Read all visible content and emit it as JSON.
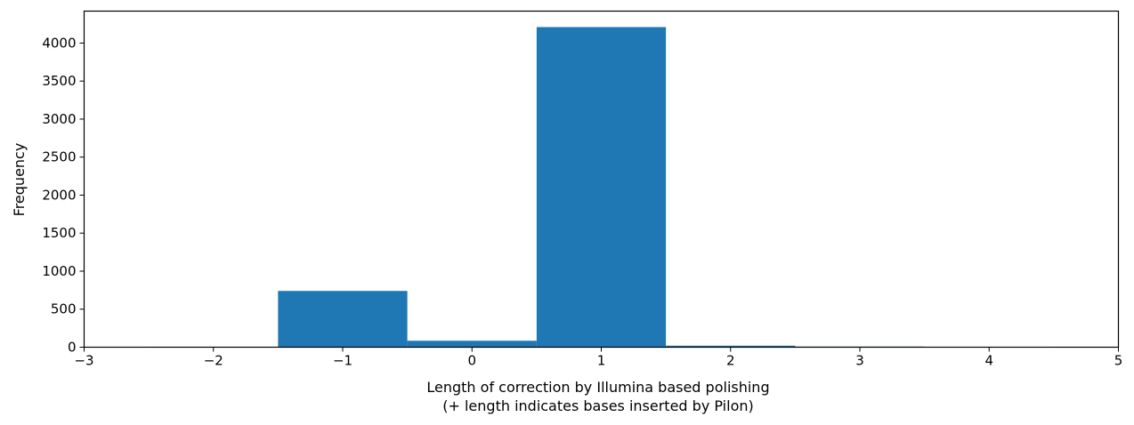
{
  "chart_data": {
    "type": "bar",
    "title": "",
    "xlabel_lines": [
      "Length of correction by Illumina based polishing",
      "(+ length indicates bases inserted by Pilon)"
    ],
    "ylabel": "Frequency",
    "xlim": [
      -3,
      5
    ],
    "ylim": [
      0,
      4420
    ],
    "grid": false,
    "bar_color": "#1f77b4",
    "bins": [
      {
        "x0": -3.0,
        "x1": -2.5,
        "value": 3
      },
      {
        "x0": -2.5,
        "x1": -1.5,
        "value": 6
      },
      {
        "x0": -1.5,
        "x1": -0.5,
        "value": 740
      },
      {
        "x0": -0.5,
        "x1": 0.5,
        "value": 85
      },
      {
        "x0": 0.5,
        "x1": 1.5,
        "value": 4210
      },
      {
        "x0": 1.5,
        "x1": 2.5,
        "value": 20
      },
      {
        "x0": 2.5,
        "x1": 3.5,
        "value": 8
      },
      {
        "x0": 3.5,
        "x1": 4.5,
        "value": 2
      },
      {
        "x0": 4.5,
        "x1": 5.0,
        "value": 6
      }
    ],
    "xticks": [
      {
        "value": -3,
        "label": "−3"
      },
      {
        "value": -2,
        "label": "−2"
      },
      {
        "value": -1,
        "label": "−1"
      },
      {
        "value": 0,
        "label": "0"
      },
      {
        "value": 1,
        "label": "1"
      },
      {
        "value": 2,
        "label": "2"
      },
      {
        "value": 3,
        "label": "3"
      },
      {
        "value": 4,
        "label": "4"
      },
      {
        "value": 5,
        "label": "5"
      }
    ],
    "yticks": [
      {
        "value": 0,
        "label": "0"
      },
      {
        "value": 500,
        "label": "500"
      },
      {
        "value": 1000,
        "label": "1000"
      },
      {
        "value": 1500,
        "label": "1500"
      },
      {
        "value": 2000,
        "label": "2000"
      },
      {
        "value": 2500,
        "label": "2500"
      },
      {
        "value": 3000,
        "label": "3000"
      },
      {
        "value": 3500,
        "label": "3500"
      },
      {
        "value": 4000,
        "label": "4000"
      }
    ]
  }
}
